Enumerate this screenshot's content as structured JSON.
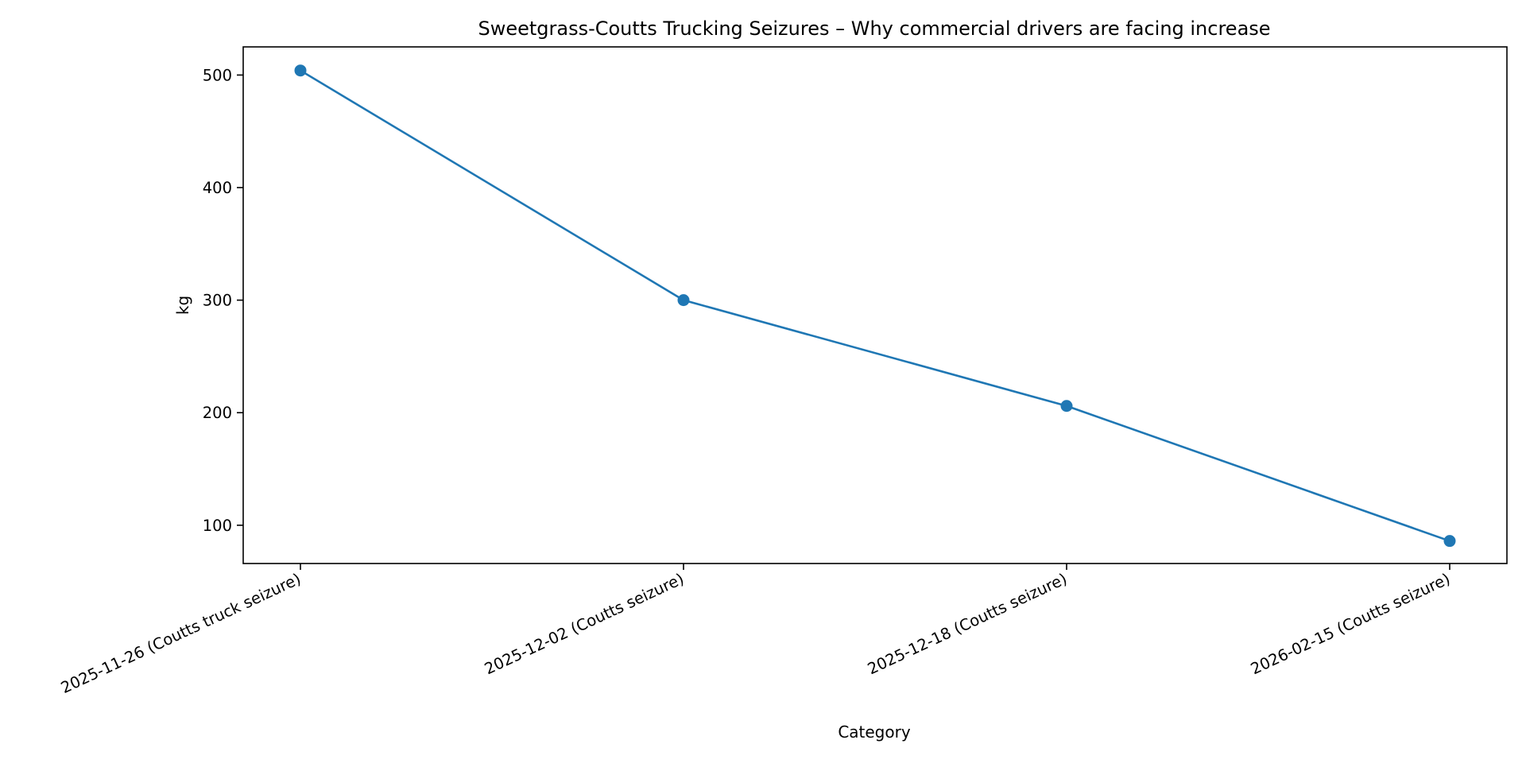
{
  "chart_data": {
    "type": "line",
    "title": "Sweetgrass-Coutts Trucking Seizures – Why commercial drivers are facing increase",
    "xlabel": "Category",
    "ylabel": "kg",
    "categories": [
      "2025-11-26 (Coutts truck seizure)",
      "2025-12-02 (Coutts seizure)",
      "2025-12-18 (Coutts seizure)",
      "2026-02-15 (Coutts seizure)"
    ],
    "series": [
      {
        "values": [
          504,
          300,
          206,
          86
        ],
        "color": "#1f77b4",
        "marker": "circle"
      }
    ],
    "yticks": [
      100,
      200,
      300,
      400,
      500
    ],
    "ylim": [
      66,
      525
    ],
    "grid": false,
    "legend": "none"
  }
}
